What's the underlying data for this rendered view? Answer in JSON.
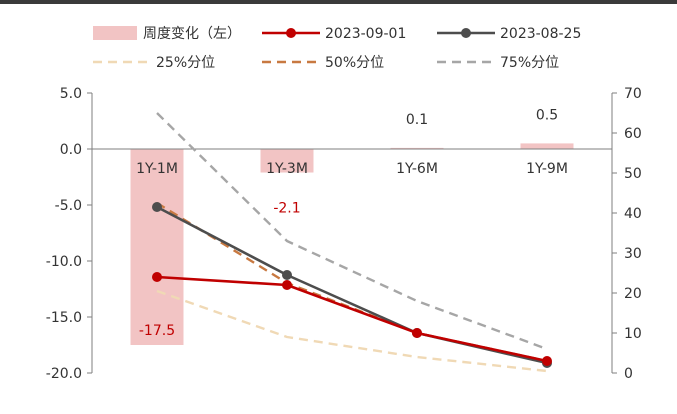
{
  "chart_data": {
    "type": "bar+line",
    "categories": [
      "1Y-1M",
      "1Y-3M",
      "1Y-6M",
      "1Y-9M"
    ],
    "bars": {
      "name": "周度变化（左）",
      "axis": "left",
      "values": [
        -17.5,
        -2.1,
        0.1,
        0.5
      ],
      "labels": [
        "-17.5",
        "-2.1",
        "0.1",
        "0.5"
      ],
      "color": "#f2c4c4",
      "label_colors": [
        "#c00000",
        "#c00000",
        "#333333",
        "#333333"
      ]
    },
    "series": [
      {
        "name": "2023-09-01",
        "axis": "right",
        "values": [
          24.0,
          22.0,
          10.0,
          3.0
        ],
        "color": "#c00000",
        "style": "solid-marker"
      },
      {
        "name": "2023-08-25",
        "axis": "right",
        "values": [
          41.5,
          24.5,
          10.0,
          2.5
        ],
        "color": "#4d4d4d",
        "style": "solid-marker"
      },
      {
        "name": "25%分位",
        "axis": "right",
        "values": [
          20.5,
          9.0,
          4.0,
          0.5
        ],
        "color": "#f0d9b5",
        "style": "dashed"
      },
      {
        "name": "50%分位",
        "axis": "right",
        "values": [
          42.5,
          22.5,
          10.0,
          3.0
        ],
        "color": "#c87941",
        "style": "dashed"
      },
      {
        "name": "75%分位",
        "axis": "right",
        "values": [
          65.0,
          33.0,
          18.0,
          6.0
        ],
        "color": "#a6a6a6",
        "style": "dashed"
      }
    ],
    "left_axis": {
      "ylim": [
        -20,
        5
      ],
      "ticks": [
        5,
        0,
        -5,
        -10,
        -15,
        -20
      ],
      "tick_labels": [
        "5.0",
        "0.0",
        "-5.0",
        "-10.0",
        "-15.0",
        "-20.0"
      ]
    },
    "right_axis": {
      "ylim": [
        0,
        70
      ],
      "ticks": [
        70,
        60,
        50,
        40,
        30,
        20,
        10,
        0
      ],
      "tick_labels": [
        "70",
        "60",
        "50",
        "40",
        "30",
        "20",
        "10",
        "0"
      ]
    },
    "grid": false,
    "legend_position": "top"
  },
  "colors": {
    "top_rule": "#3a3a3a",
    "axis": "#7f7f7f",
    "text": "#333333"
  }
}
